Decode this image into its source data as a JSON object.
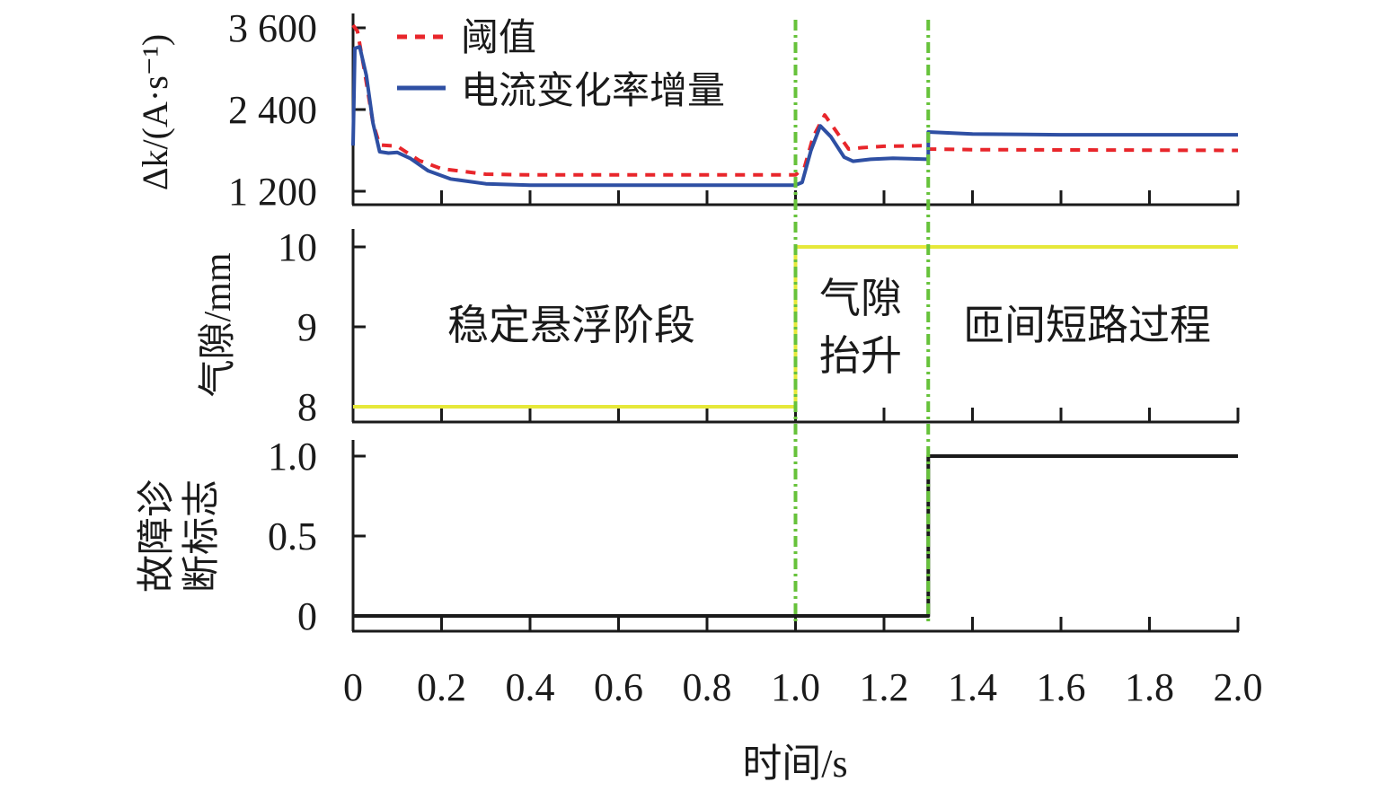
{
  "chart_data": [
    {
      "type": "line",
      "panel": "top",
      "ylabel": "Δk/(A·s⁻¹)",
      "ylim": [
        1200,
        3600
      ],
      "yticks": [
        1200,
        2400,
        3600
      ],
      "ytick_labels": [
        "1 200",
        "2 400",
        "3 600"
      ],
      "legend_position": "top-left",
      "series": [
        {
          "name": "阈值",
          "style": "dashed",
          "color": "#e8262b",
          "points": [
            [
              0,
              3640
            ],
            [
              0.01,
              3550
            ],
            [
              0.025,
              3000
            ],
            [
              0.045,
              2200
            ],
            [
              0.06,
              1880
            ],
            [
              0.1,
              1860
            ],
            [
              0.15,
              1650
            ],
            [
              0.2,
              1530
            ],
            [
              0.3,
              1450
            ],
            [
              0.4,
              1440
            ],
            [
              1.0,
              1440
            ],
            [
              1.02,
              1550
            ],
            [
              1.04,
              2000
            ],
            [
              1.066,
              2320
            ],
            [
              1.09,
              2100
            ],
            [
              1.12,
              1820
            ],
            [
              1.15,
              1840
            ],
            [
              1.2,
              1860
            ],
            [
              1.3,
              1870
            ],
            [
              1.3,
              1820
            ],
            [
              1.4,
              1810
            ],
            [
              2.0,
              1800
            ]
          ]
        },
        {
          "name": "电流变化率增量",
          "style": "solid",
          "color": "#2e4fa3",
          "points": [
            [
              0,
              1870
            ],
            [
              0.004,
              3300
            ],
            [
              0.015,
              3320
            ],
            [
              0.03,
              2900
            ],
            [
              0.045,
              2200
            ],
            [
              0.06,
              1780
            ],
            [
              0.08,
              1760
            ],
            [
              0.1,
              1770
            ],
            [
              0.13,
              1680
            ],
            [
              0.17,
              1500
            ],
            [
              0.22,
              1380
            ],
            [
              0.3,
              1310
            ],
            [
              0.4,
              1290
            ],
            [
              1.0,
              1290
            ],
            [
              1.015,
              1330
            ],
            [
              1.035,
              1800
            ],
            [
              1.056,
              2160
            ],
            [
              1.08,
              2000
            ],
            [
              1.11,
              1700
            ],
            [
              1.13,
              1640
            ],
            [
              1.17,
              1670
            ],
            [
              1.22,
              1685
            ],
            [
              1.3,
              1670
            ],
            [
              1.3,
              2070
            ],
            [
              1.4,
              2040
            ],
            [
              1.6,
              2030
            ],
            [
              2.0,
              2030
            ]
          ]
        }
      ]
    },
    {
      "type": "line",
      "panel": "middle",
      "ylabel": "气隙/mm",
      "ylim": [
        8,
        10
      ],
      "yticks": [
        8,
        9,
        10
      ],
      "ytick_labels": [
        "8",
        "9",
        "10"
      ],
      "series": [
        {
          "name": "气隙",
          "style": "solid",
          "color": "#e6e83a",
          "points": [
            [
              0,
              8
            ],
            [
              1.0,
              8
            ],
            [
              1.0,
              10
            ],
            [
              2.0,
              10
            ]
          ]
        }
      ],
      "annotations": [
        "稳定悬浮阶段",
        "气隙",
        "抬升",
        "匝间短路过程"
      ]
    },
    {
      "type": "line",
      "panel": "bottom",
      "ylabel_lines": [
        "故障诊",
        "断标志"
      ],
      "ylim": [
        0,
        1.0
      ],
      "yticks": [
        0,
        0.5,
        1.0
      ],
      "ytick_labels": [
        "0",
        "0.5",
        "1.0"
      ],
      "series": [
        {
          "name": "故障诊断标志",
          "style": "solid",
          "color": "#1a1a1a",
          "points": [
            [
              0,
              0
            ],
            [
              1.3,
              0
            ],
            [
              1.3,
              1
            ],
            [
              2.0,
              1
            ]
          ]
        }
      ]
    }
  ],
  "x_axis": {
    "label": "时间/s",
    "xlim": [
      0,
      2.0
    ],
    "ticks": [
      0,
      0.2,
      0.4,
      0.6,
      0.8,
      1.0,
      1.2,
      1.4,
      1.6,
      1.8,
      2.0
    ],
    "tick_labels": [
      "0",
      "0.2",
      "0.4",
      "0.6",
      "0.8",
      "1.0",
      "1.2",
      "1.4",
      "1.6",
      "1.8",
      "2.0"
    ]
  },
  "event_lines": {
    "x": [
      1.0,
      1.3
    ],
    "color": "#66c23a",
    "style": "dash-dot"
  }
}
